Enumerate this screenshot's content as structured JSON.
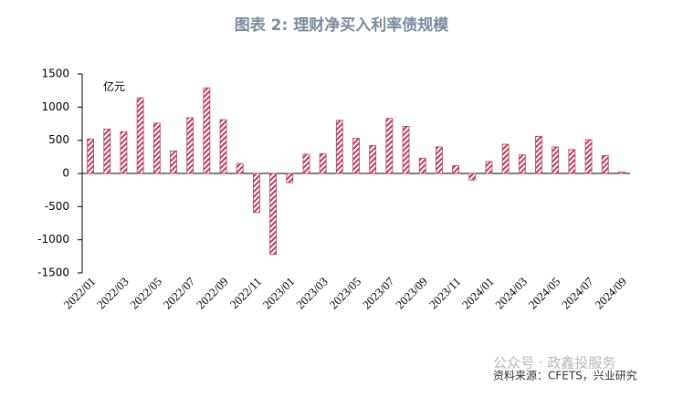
{
  "chart_data": {
    "type": "bar",
    "title": "图表 2:  理财净买入利率债规模",
    "y_label": "亿元",
    "source": "资料来源：CFETS，兴业研究",
    "watermark": "公众号 · 政鑫投服务",
    "categories": [
      "2022/01",
      null,
      "2022/03",
      null,
      "2022/05",
      null,
      "2022/07",
      null,
      "2022/09",
      null,
      "2022/11",
      null,
      "2023/01",
      null,
      "2023/03",
      null,
      "2023/05",
      null,
      "2023/07",
      null,
      "2023/09",
      null,
      "2023/11",
      null,
      "2024/01",
      null,
      "2024/03",
      null,
      "2024/05",
      null,
      "2024/07",
      null,
      "2024/09"
    ],
    "values": [
      520,
      670,
      630,
      1140,
      760,
      340,
      840,
      1290,
      810,
      150,
      -590,
      -1220,
      -140,
      290,
      300,
      800,
      530,
      420,
      830,
      710,
      230,
      400,
      120,
      -100,
      180,
      440,
      280,
      560,
      400,
      360,
      510,
      270,
      20
    ],
    "color": "#b8405e",
    "ylim": [
      -1500,
      1500
    ],
    "yticks": [
      -1500,
      -1000,
      -500,
      0,
      500,
      1000,
      1500
    ],
    "grid": false
  }
}
